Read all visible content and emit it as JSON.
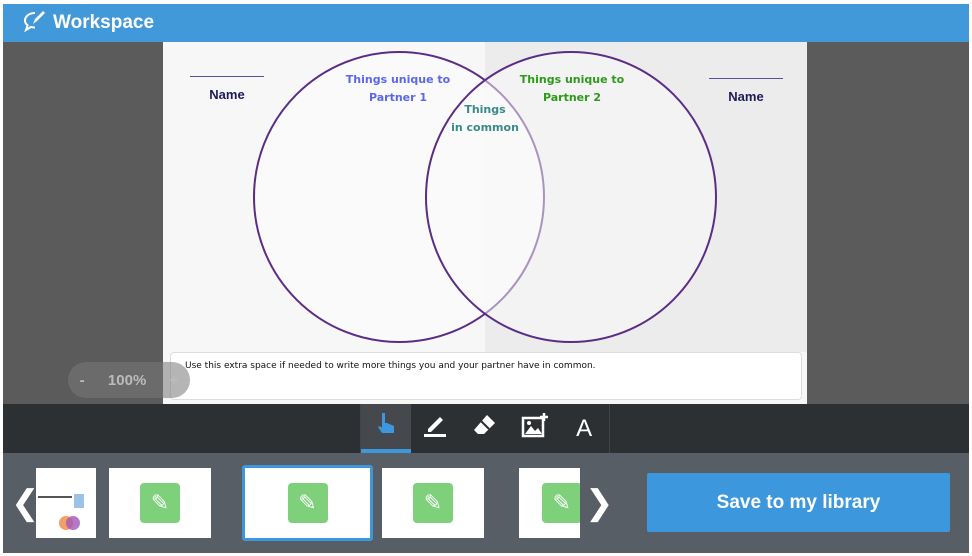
{
  "header": {
    "title": "Workspace",
    "logo_icon": "chat-pencil-icon"
  },
  "document": {
    "left_name": "Name",
    "right_name": "Name",
    "unique1": [
      "Things unique to",
      "Partner 1"
    ],
    "unique2": [
      "Things unique to",
      "Partner 2"
    ],
    "common": [
      "Things",
      "in common"
    ],
    "extra_text": "Use this extra space if needed to write more things you and your partner have in common.",
    "colors": {
      "circle": "#5b2d86",
      "unique1": "#5a67f0",
      "unique2": "#2e9a1a",
      "common": "#3a8a8a"
    }
  },
  "zoom": {
    "minus": "-",
    "level": "100%",
    "plus": "+"
  },
  "tools": [
    {
      "icon": "pointer-hand-icon",
      "active": true
    },
    {
      "icon": "pencil-icon"
    },
    {
      "icon": "eraser-icon"
    },
    {
      "icon": "add-image-icon"
    },
    {
      "icon": "text-icon",
      "label": "A"
    }
  ],
  "thumbnails": {
    "selected_index": 2,
    "count_visible": 5
  },
  "save_label": "Save to my library",
  "accent": "#3d97dc"
}
